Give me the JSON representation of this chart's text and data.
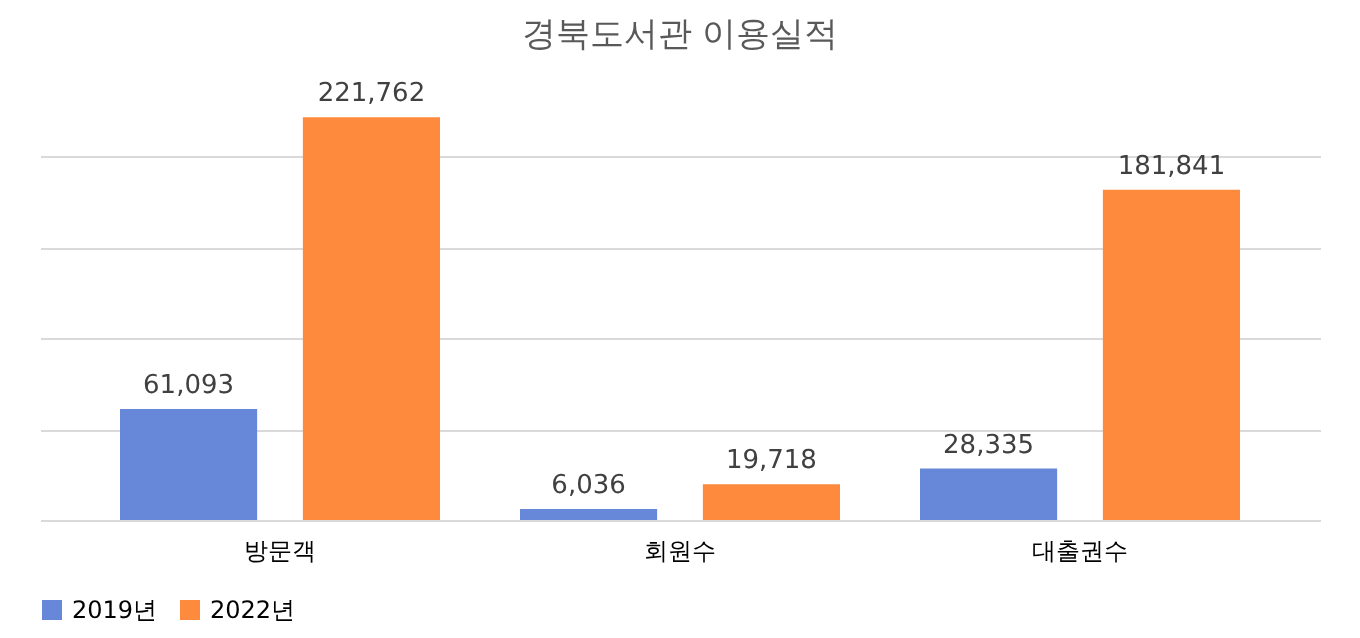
{
  "chart_data": {
    "type": "bar",
    "title": "경북도서관 이용실적",
    "categories": [
      "방문객",
      "회원수",
      "대출권수"
    ],
    "series": [
      {
        "name": "2019년",
        "color": "#6787d9",
        "values": [
          61093,
          6036,
          28335
        ],
        "value_labels": [
          "61,093",
          "6,036",
          "28,335"
        ]
      },
      {
        "name": "2022년",
        "color": "#fe8a3d",
        "values": [
          221762,
          19718,
          181841
        ],
        "value_labels": [
          "221,762",
          "19,718",
          "181,841"
        ]
      }
    ],
    "grid": "y",
    "legend": "bottom",
    "tick_labels": "x"
  }
}
